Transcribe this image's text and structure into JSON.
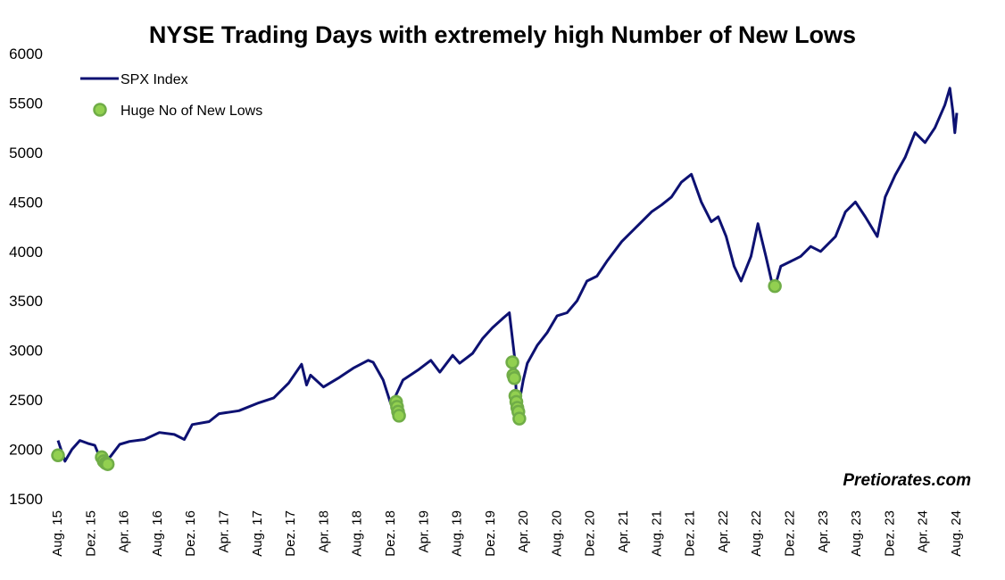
{
  "colors": {
    "line": "#0d1172",
    "marker_fill": "#92d050",
    "marker_stroke": "#70ad47"
  },
  "watermark": "Pretiorates.com",
  "chart_data": {
    "type": "line",
    "title": "NYSE Trading Days with extremely high Number of New Lows",
    "xlabel": "",
    "ylabel": "",
    "ylim": [
      1500,
      6000
    ],
    "yticks": [
      1500,
      2000,
      2500,
      3000,
      3500,
      4000,
      4500,
      5000,
      5500,
      6000
    ],
    "xlim": [
      "2015-08-01",
      "2024-08-31"
    ],
    "xticks": [
      "Aug. 15",
      "Dez. 15",
      "Apr. 16",
      "Aug. 16",
      "Dez. 16",
      "Apr. 17",
      "Aug. 17",
      "Dez. 17",
      "Apr. 18",
      "Aug. 18",
      "Dez. 18",
      "Apr. 19",
      "Aug. 19",
      "Dez. 19",
      "Apr. 20",
      "Aug. 20",
      "Dez. 20",
      "Apr. 21",
      "Aug. 21",
      "Dez. 21",
      "Apr. 22",
      "Aug. 22",
      "Dez. 22",
      "Apr. 23",
      "Aug. 23",
      "Dez. 23",
      "Apr. 24",
      "Aug. 24"
    ],
    "legend": {
      "position": "top-left",
      "entries": [
        "SPX Index",
        "Huge No of New Lows"
      ]
    },
    "series": [
      {
        "name": "SPX Index",
        "kind": "line",
        "x": [
          2015.58,
          2015.65,
          2015.72,
          2015.8,
          2015.88,
          2015.95,
          2016.0,
          2016.04,
          2016.11,
          2016.2,
          2016.3,
          2016.45,
          2016.6,
          2016.75,
          2016.85,
          2016.93,
          2017.1,
          2017.2,
          2017.4,
          2017.6,
          2017.75,
          2017.9,
          2018.03,
          2018.08,
          2018.12,
          2018.25,
          2018.4,
          2018.55,
          2018.7,
          2018.75,
          2018.85,
          2018.93,
          2018.98,
          2019.05,
          2019.2,
          2019.33,
          2019.42,
          2019.55,
          2019.62,
          2019.75,
          2019.85,
          2019.95,
          2020.05,
          2020.12,
          2020.17,
          2020.2,
          2020.22,
          2020.26,
          2020.3,
          2020.4,
          2020.5,
          2020.6,
          2020.7,
          2020.8,
          2020.9,
          2021.0,
          2021.1,
          2021.25,
          2021.4,
          2021.55,
          2021.65,
          2021.75,
          2021.85,
          2021.95,
          2022.05,
          2022.15,
          2022.22,
          2022.3,
          2022.38,
          2022.45,
          2022.55,
          2022.62,
          2022.7,
          2022.78,
          2022.85,
          2022.95,
          2023.05,
          2023.15,
          2023.25,
          2023.4,
          2023.5,
          2023.6,
          2023.7,
          2023.82,
          2023.9,
          2024.0,
          2024.1,
          2024.2,
          2024.3,
          2024.4,
          2024.5,
          2024.55,
          2024.58,
          2024.6,
          2024.62
        ],
        "y": [
          2090,
          1880,
          2000,
          2090,
          2060,
          2040,
          1920,
          1860,
          1930,
          2050,
          2080,
          2100,
          2170,
          2150,
          2100,
          2250,
          2280,
          2360,
          2390,
          2470,
          2520,
          2670,
          2860,
          2650,
          2750,
          2630,
          2720,
          2820,
          2900,
          2880,
          2700,
          2450,
          2550,
          2700,
          2800,
          2900,
          2780,
          2950,
          2870,
          2970,
          3120,
          3230,
          3320,
          3380,
          2950,
          2350,
          2480,
          2700,
          2870,
          3050,
          3180,
          3350,
          3380,
          3500,
          3700,
          3750,
          3900,
          4100,
          4250,
          4400,
          4470,
          4550,
          4700,
          4780,
          4500,
          4300,
          4350,
          4150,
          3850,
          3700,
          3950,
          4280,
          3950,
          3600,
          3850,
          3900,
          3950,
          4050,
          4000,
          4150,
          4400,
          4500,
          4350,
          4150,
          4550,
          4770,
          4950,
          5200,
          5100,
          5250,
          5480,
          5650,
          5420,
          5200,
          5400
        ]
      },
      {
        "name": "Huge No of New Lows",
        "kind": "scatter",
        "x": [
          2015.58,
          2016.02,
          2016.04,
          2016.06,
          2016.08,
          2018.98,
          2018.99,
          2019.0,
          2019.01,
          2020.15,
          2020.16,
          2020.17,
          2020.18,
          2020.19,
          2020.2,
          2020.21,
          2020.22,
          2022.79
        ],
        "y": [
          1940,
          1920,
          1880,
          1860,
          1850,
          2480,
          2430,
          2380,
          2340,
          2880,
          2750,
          2720,
          2540,
          2480,
          2420,
          2380,
          2310,
          3650
        ]
      }
    ]
  }
}
